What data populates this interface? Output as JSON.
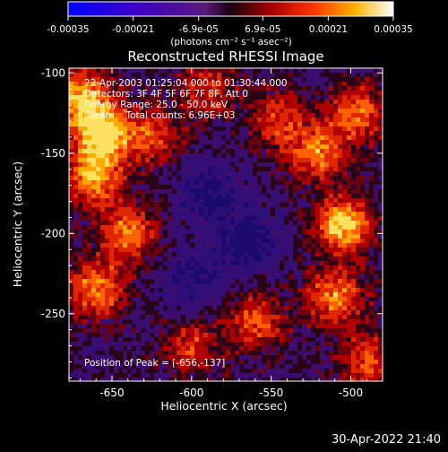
{
  "chart_data": {
    "type": "heatmap",
    "title": "Reconstructed RHESSI Image",
    "xlabel": "Heliocentric X (arcsec)",
    "ylabel": "Heliocentric Y (arcsec)",
    "xlim": [
      -677,
      -480
    ],
    "ylim": [
      -292,
      -97
    ],
    "x_ticks": [
      -650,
      -600,
      -550,
      -500
    ],
    "y_ticks": [
      -100,
      -150,
      -200,
      -250
    ],
    "colorbar": {
      "range": [
        -0.00035,
        0.00035
      ],
      "tick_values": [
        -0.00035,
        -0.00021,
        -6.9e-05,
        6.9e-05,
        0.00021,
        0.00035
      ],
      "tick_labels": [
        "-0.00035",
        "-0.00021",
        "-6.9e-05",
        "6.9e-05",
        "0.00021",
        "0.00035"
      ],
      "unit_label": "(photons cm⁻² s⁻¹ asec⁻²)"
    },
    "annotations": [
      "22-Apr-2003 01:25:04.000 to 01:30:44.000",
      "Detectors: 3F 4F 5F 6F 7F 8F, Att 0",
      "Energy Range: 25.0 - 50.0 keV",
      "Clean     Total counts: 6.96E+03"
    ],
    "peak_label": "Position of Peak = [-656,-137]",
    "peak_position": [
      -656,
      -137
    ],
    "bright_regions": [
      {
        "x": -656,
        "y": -137,
        "intensity": 1.0
      },
      {
        "x": -670,
        "y": -115,
        "intensity": 0.85
      },
      {
        "x": -662,
        "y": -165,
        "intensity": 0.8
      },
      {
        "x": -640,
        "y": -200,
        "intensity": 0.7
      },
      {
        "x": -660,
        "y": -235,
        "intensity": 0.75
      },
      {
        "x": -625,
        "y": -140,
        "intensity": 0.55
      },
      {
        "x": -505,
        "y": -195,
        "intensity": 0.9
      },
      {
        "x": -510,
        "y": -240,
        "intensity": 0.75
      },
      {
        "x": -520,
        "y": -150,
        "intensity": 0.7
      },
      {
        "x": -495,
        "y": -125,
        "intensity": 0.65
      },
      {
        "x": -560,
        "y": -255,
        "intensity": 0.6
      },
      {
        "x": -545,
        "y": -130,
        "intensity": 0.55
      },
      {
        "x": -600,
        "y": -270,
        "intensity": 0.5
      },
      {
        "x": -590,
        "y": -110,
        "intensity": 0.5
      },
      {
        "x": -490,
        "y": -280,
        "intensity": 0.6
      }
    ],
    "dark_regions": [
      {
        "x": -565,
        "y": -205,
        "intensity": -0.6
      },
      {
        "x": -590,
        "y": -175,
        "intensity": -0.45
      },
      {
        "x": -600,
        "y": -230,
        "intensity": -0.4
      }
    ]
  },
  "footer": {
    "timestamp": "30-Apr-2022 21:40"
  },
  "colors": {
    "background": "#000000",
    "text": "#ffffff"
  }
}
